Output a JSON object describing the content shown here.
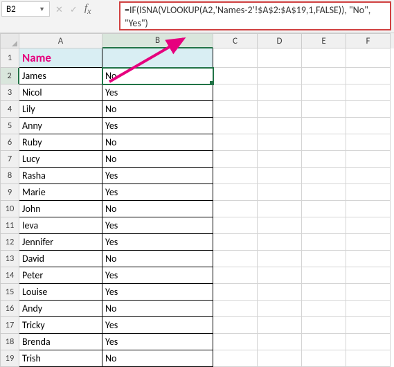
{
  "namebox": {
    "value": "B2"
  },
  "formula_bar": {
    "text": "=IF(ISNA(VLOOKUP(A2,'Names-2'!$A$2:$A$19,1,FALSE)), \"No\", \"Yes\")"
  },
  "columns": {
    "letters": [
      "A",
      "B",
      "C",
      "D",
      "E",
      "F"
    ],
    "widths": [
      120,
      160,
      64,
      64,
      64,
      64
    ],
    "active_index": 1
  },
  "header_row": {
    "label": "Name"
  },
  "active_row": 2,
  "rows": [
    {
      "n": 1,
      "a": "Name",
      "b": "",
      "is_header": true
    },
    {
      "n": 2,
      "a": "James",
      "b": "No"
    },
    {
      "n": 3,
      "a": "Nicol",
      "b": "Yes"
    },
    {
      "n": 4,
      "a": "Lily",
      "b": "No"
    },
    {
      "n": 5,
      "a": "Anny",
      "b": "Yes"
    },
    {
      "n": 6,
      "a": "Ruby",
      "b": "No"
    },
    {
      "n": 7,
      "a": "Lucy",
      "b": "No"
    },
    {
      "n": 8,
      "a": "Rasha",
      "b": "Yes"
    },
    {
      "n": 9,
      "a": "Marie",
      "b": "Yes"
    },
    {
      "n": 10,
      "a": "John",
      "b": "No"
    },
    {
      "n": 11,
      "a": "Ieva",
      "b": "Yes"
    },
    {
      "n": 12,
      "a": "Jennifer",
      "b": "Yes"
    },
    {
      "n": 13,
      "a": "David",
      "b": "No"
    },
    {
      "n": 14,
      "a": "Peter",
      "b": "Yes"
    },
    {
      "n": 15,
      "a": "Louise",
      "b": "Yes"
    },
    {
      "n": 16,
      "a": "Andy",
      "b": "No"
    },
    {
      "n": 17,
      "a": "Tricky",
      "b": "Yes"
    },
    {
      "n": 18,
      "a": "Brenda",
      "b": "Yes"
    },
    {
      "n": 19,
      "a": "Trish",
      "b": "No"
    }
  ],
  "colors": {
    "highlight_border": "#d04040",
    "arrow": "#e6007e",
    "header_bg": "#d9eef3",
    "header_text": "#e6007e",
    "selection": "#217346"
  }
}
